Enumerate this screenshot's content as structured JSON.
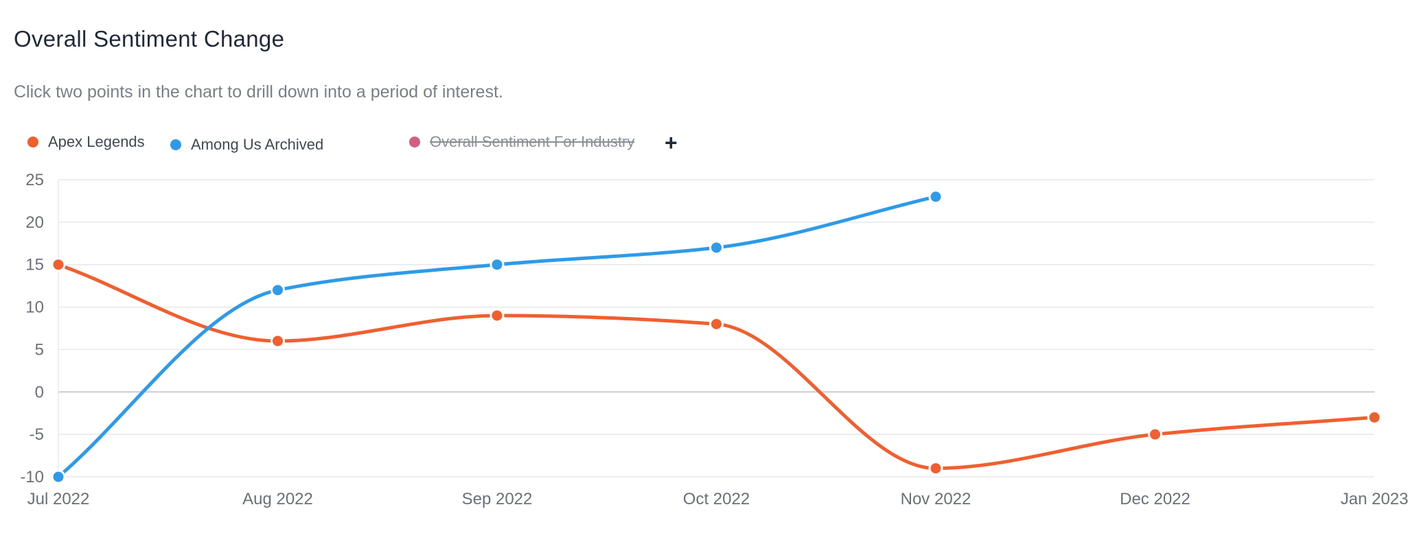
{
  "header": {
    "title": "Overall Sentiment Change",
    "subtitle": "Click two points in the chart to drill down into a period of interest."
  },
  "legend": {
    "items": [
      {
        "label": "Apex Legends",
        "color": "#ef5f2f",
        "enabled": true
      },
      {
        "label": "Among Us Archived",
        "color": "#2f9ae8",
        "enabled": true
      },
      {
        "label": "Overall Sentiment For Industry",
        "color": "#d0607e",
        "enabled": false
      }
    ],
    "add_symbol": "+"
  },
  "chart_data": {
    "type": "line",
    "title": "",
    "xlabel": "",
    "ylabel": "",
    "categories": [
      "Jul 2022",
      "Aug 2022",
      "Sep 2022",
      "Oct 2022",
      "Nov 2022",
      "Dec 2022",
      "Jan 2023"
    ],
    "ylim": [
      -10,
      25
    ],
    "yticks": [
      25,
      20,
      15,
      10,
      5,
      0,
      -5,
      -10
    ],
    "grid": true,
    "legend_position": "top-left",
    "series": [
      {
        "name": "Apex Legends",
        "color": "#ef5f2f",
        "values": [
          15,
          6,
          9,
          8,
          -9,
          -5,
          -3
        ]
      },
      {
        "name": "Among Us Archived",
        "color": "#2f9ae8",
        "values": [
          -10,
          12,
          15,
          17,
          23,
          null,
          null
        ]
      }
    ]
  }
}
